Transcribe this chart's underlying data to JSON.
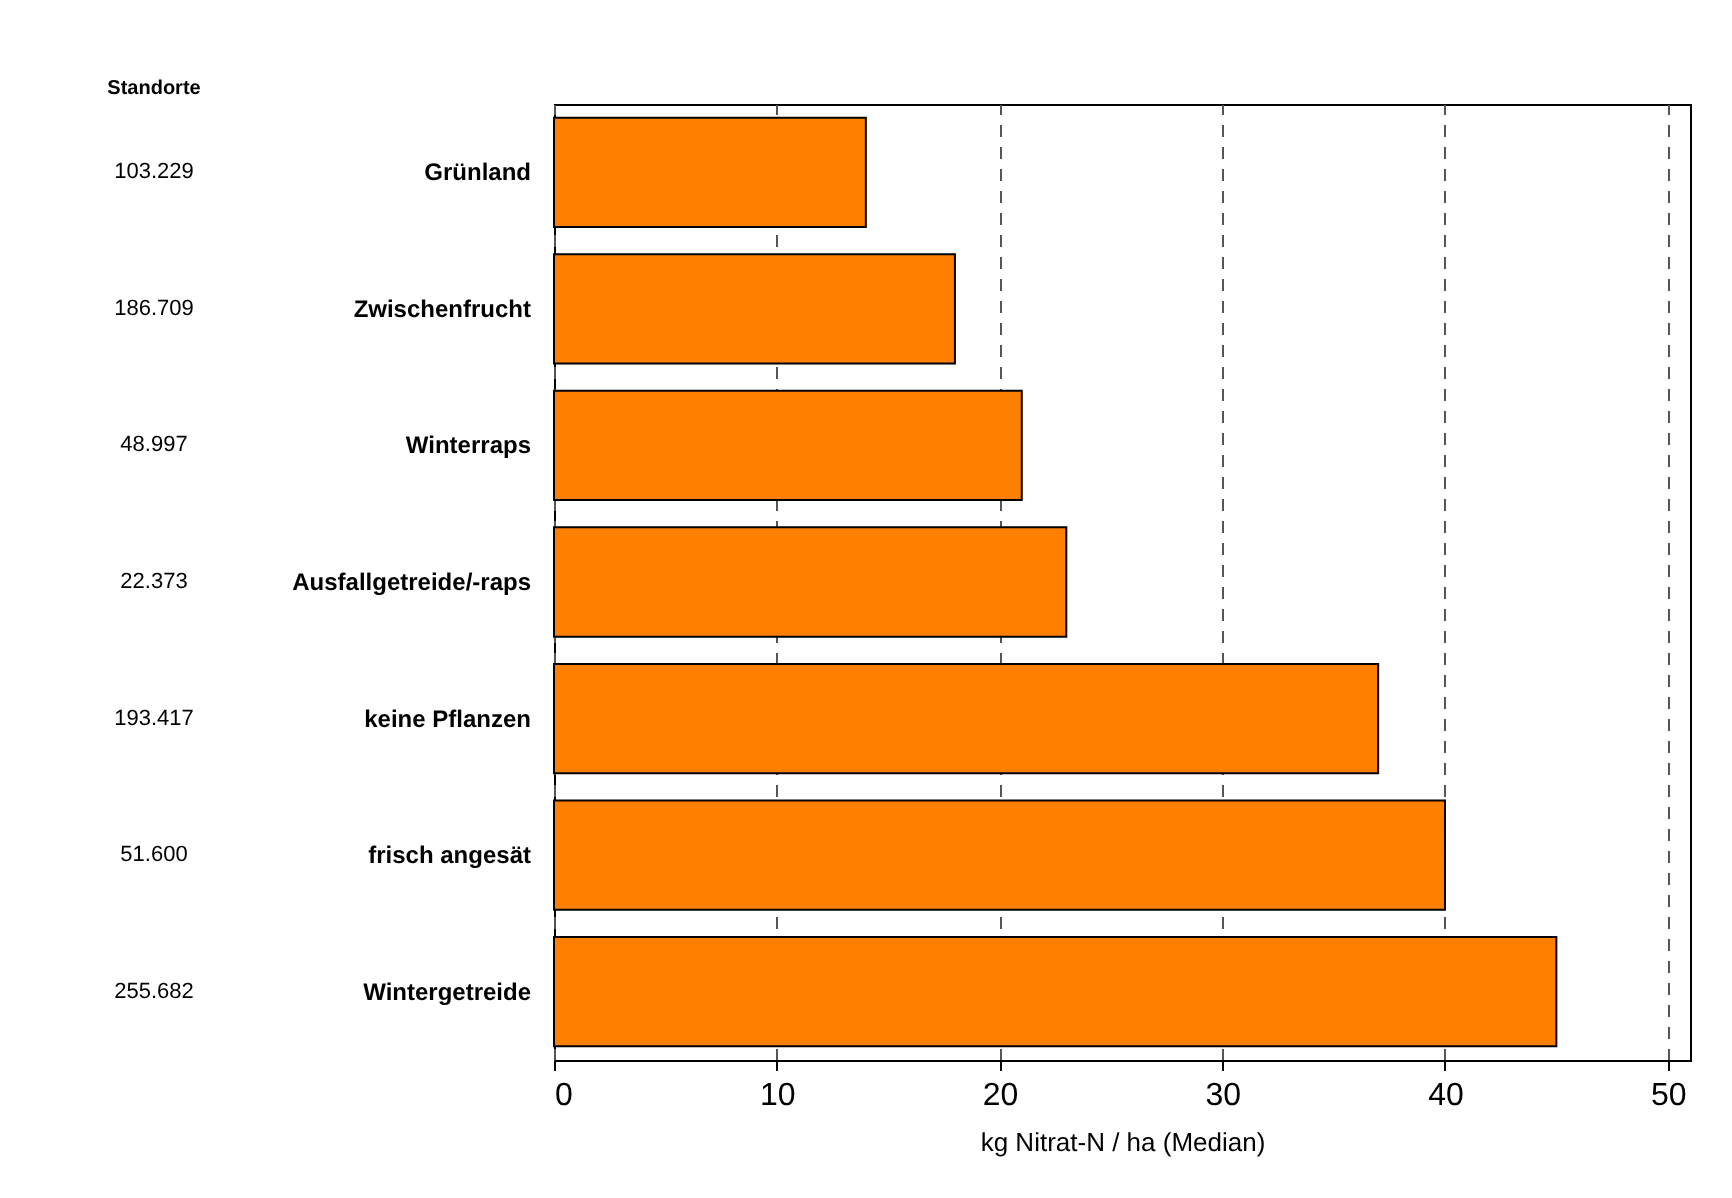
{
  "chart_data": {
    "type": "bar",
    "orientation": "horizontal",
    "xlabel": "kg Nitrat-N / ha (Median)",
    "categories": [
      "Grünland",
      "Zwischenfrucht",
      "Winterraps",
      "Ausfallgetreide/-raps",
      "keine Pflanzen",
      "frisch angesät",
      "Wintergetreide"
    ],
    "values": [
      14,
      18,
      21,
      23,
      37,
      40,
      45
    ],
    "color": "#ff8000",
    "xlim": [
      0,
      51
    ],
    "xticks": [
      0,
      10,
      20,
      30,
      40,
      50
    ],
    "grid": "x",
    "annotations": [
      "Standorte",
      "103.229",
      "186.709",
      "48.997",
      "22.373",
      "193.417",
      "51.600",
      "255.682"
    ]
  }
}
